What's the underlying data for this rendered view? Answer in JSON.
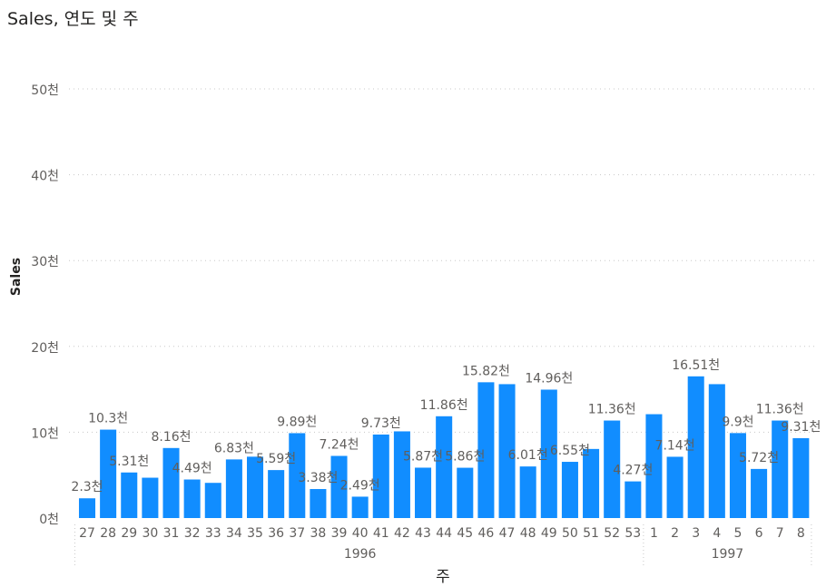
{
  "chart_data": {
    "type": "bar",
    "title": "Sales, 연도 및 주",
    "xlabel": "주",
    "ylabel": "Sales",
    "ylim": [
      0,
      50000
    ],
    "yticks": [
      {
        "value": 0,
        "label": "0천"
      },
      {
        "value": 10000,
        "label": "10천"
      },
      {
        "value": 20000,
        "label": "20천"
      },
      {
        "value": 30000,
        "label": "30천"
      },
      {
        "value": 40000,
        "label": "40천"
      },
      {
        "value": 50000,
        "label": "50천"
      }
    ],
    "grid": true,
    "bar_color": "#118DFF",
    "groups": [
      {
        "label": "1996",
        "start": 0,
        "end": 26
      },
      {
        "label": "1997",
        "start": 27,
        "end": 34
      }
    ],
    "bars": [
      {
        "week": "27",
        "value": 2300,
        "label": "2.3천"
      },
      {
        "week": "28",
        "value": 10300,
        "label": "10.3천"
      },
      {
        "week": "29",
        "value": 5310,
        "label": "5.31천"
      },
      {
        "week": "30",
        "value": 4700,
        "label": ""
      },
      {
        "week": "31",
        "value": 8160,
        "label": "8.16천"
      },
      {
        "week": "32",
        "value": 4490,
        "label": "4.49천"
      },
      {
        "week": "33",
        "value": 4100,
        "label": ""
      },
      {
        "week": "34",
        "value": 6830,
        "label": "6.83천"
      },
      {
        "week": "35",
        "value": 7150,
        "label": ""
      },
      {
        "week": "36",
        "value": 5590,
        "label": "5.59천"
      },
      {
        "week": "37",
        "value": 9890,
        "label": "9.89천"
      },
      {
        "week": "38",
        "value": 3380,
        "label": "3.38천"
      },
      {
        "week": "39",
        "value": 7240,
        "label": "7.24천"
      },
      {
        "week": "40",
        "value": 2490,
        "label": "2.49천"
      },
      {
        "week": "41",
        "value": 9730,
        "label": "9.73천"
      },
      {
        "week": "42",
        "value": 10100,
        "label": ""
      },
      {
        "week": "43",
        "value": 5870,
        "label": "5.87천"
      },
      {
        "week": "44",
        "value": 11860,
        "label": "11.86천"
      },
      {
        "week": "45",
        "value": 5860,
        "label": "5.86천"
      },
      {
        "week": "46",
        "value": 15820,
        "label": "15.82천"
      },
      {
        "week": "47",
        "value": 15600,
        "label": ""
      },
      {
        "week": "48",
        "value": 6010,
        "label": "6.01천"
      },
      {
        "week": "49",
        "value": 14960,
        "label": "14.96천"
      },
      {
        "week": "50",
        "value": 6550,
        "label": "6.55천"
      },
      {
        "week": "51",
        "value": 8050,
        "label": ""
      },
      {
        "week": "52",
        "value": 11360,
        "label": "11.36천"
      },
      {
        "week": "53",
        "value": 4270,
        "label": "4.27천"
      },
      {
        "week": "1",
        "value": 12100,
        "label": ""
      },
      {
        "week": "2",
        "value": 7140,
        "label": "7.14천"
      },
      {
        "week": "3",
        "value": 16510,
        "label": "16.51천"
      },
      {
        "week": "4",
        "value": 15600,
        "label": ""
      },
      {
        "week": "5",
        "value": 9900,
        "label": "9.9천"
      },
      {
        "week": "6",
        "value": 5720,
        "label": "5.72천"
      },
      {
        "week": "7",
        "value": 11360,
        "label": "11.36천"
      },
      {
        "week": "8",
        "value": 9310,
        "label": "9.31천"
      }
    ]
  }
}
